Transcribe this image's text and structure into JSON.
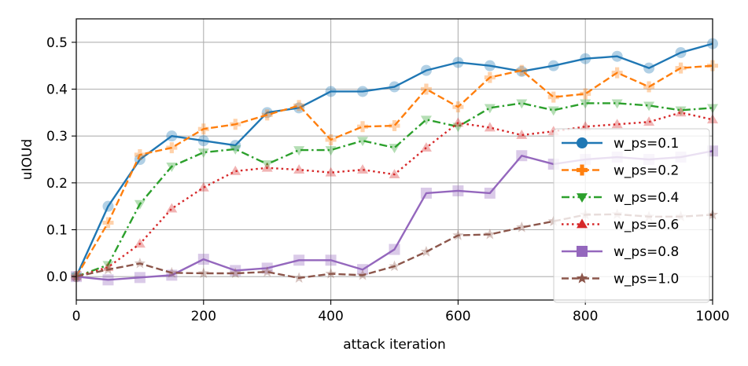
{
  "chart_data": {
    "type": "line",
    "title": "",
    "xlabel": "attack iteration",
    "ylabel": "uIOUd",
    "xlim": [
      0,
      1000
    ],
    "ylim": [
      -0.05,
      0.55
    ],
    "xticks": [
      0,
      200,
      400,
      600,
      800,
      1000
    ],
    "yticks": [
      0.0,
      0.1,
      0.2,
      0.3,
      0.4,
      0.5
    ],
    "xtick_labels": [
      "0",
      "200",
      "400",
      "600",
      "800",
      "1000"
    ],
    "ytick_labels": [
      "0.0",
      "0.1",
      "0.2",
      "0.3",
      "0.4",
      "0.5"
    ],
    "grid": true,
    "legend_position": "right",
    "x": [
      0,
      50,
      100,
      150,
      200,
      250,
      300,
      350,
      400,
      450,
      500,
      550,
      600,
      650,
      700,
      750,
      800,
      850,
      900,
      950,
      1000
    ],
    "series": [
      {
        "name": "w_ps=0.1",
        "color": "#1f77b4",
        "line_style": "solid",
        "marker": "circle",
        "values": [
          0.0,
          0.15,
          0.25,
          0.3,
          0.29,
          0.28,
          0.35,
          0.36,
          0.395,
          0.395,
          0.405,
          0.44,
          0.457,
          0.45,
          0.438,
          0.45,
          0.465,
          0.47,
          0.445,
          0.478,
          0.497
        ]
      },
      {
        "name": "w_ps=0.2",
        "color": "#ff7f0e",
        "line_style": "dashed",
        "marker": "plus",
        "values": [
          0.0,
          0.115,
          0.26,
          0.275,
          0.315,
          0.325,
          0.345,
          0.365,
          0.292,
          0.32,
          0.322,
          0.4,
          0.362,
          0.425,
          0.44,
          0.383,
          0.39,
          0.435,
          0.405,
          0.445,
          0.45
        ]
      },
      {
        "name": "w_ps=0.4",
        "color": "#2ca02c",
        "line_style": "dashdot",
        "marker": "triangle-down",
        "values": [
          0.0,
          0.025,
          0.155,
          0.235,
          0.265,
          0.272,
          0.24,
          0.27,
          0.27,
          0.29,
          0.275,
          0.335,
          0.32,
          0.36,
          0.37,
          0.355,
          0.37,
          0.37,
          0.365,
          0.355,
          0.36
        ]
      },
      {
        "name": "w_ps=0.6",
        "color": "#d62728",
        "line_style": "dotted",
        "marker": "triangle-up",
        "values": [
          0.0,
          0.02,
          0.07,
          0.145,
          0.19,
          0.225,
          0.232,
          0.228,
          0.222,
          0.228,
          0.218,
          0.275,
          0.328,
          0.318,
          0.302,
          0.31,
          0.32,
          0.325,
          0.33,
          0.35,
          0.335
        ]
      },
      {
        "name": "w_ps=0.8",
        "color": "#9467bd",
        "line_style": "solid",
        "marker": "square",
        "values": [
          0.0,
          -0.007,
          -0.002,
          0.003,
          0.037,
          0.013,
          0.018,
          0.035,
          0.035,
          0.015,
          0.058,
          0.178,
          0.183,
          0.178,
          0.258,
          0.24,
          0.25,
          0.255,
          0.25,
          0.255,
          0.268
        ]
      },
      {
        "name": "w_ps=1.0",
        "color": "#8c564b",
        "line_style": "dashed",
        "marker": "star",
        "values": [
          0.0,
          0.015,
          0.028,
          0.008,
          0.007,
          0.007,
          0.01,
          -0.003,
          0.006,
          0.003,
          0.022,
          0.053,
          0.088,
          0.09,
          0.105,
          0.118,
          0.132,
          0.133,
          0.128,
          0.128,
          0.132
        ]
      }
    ]
  }
}
